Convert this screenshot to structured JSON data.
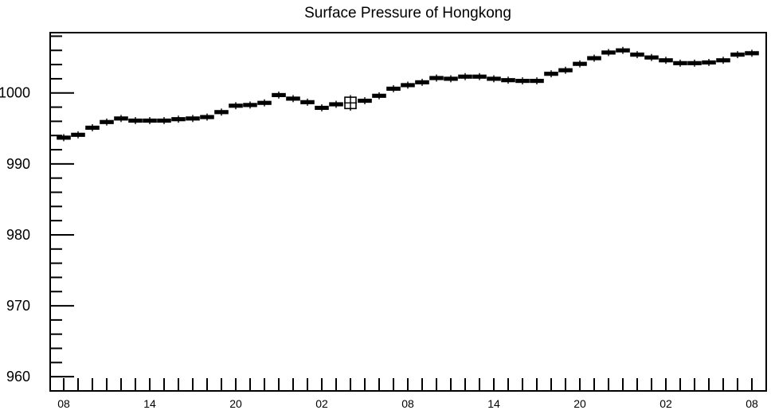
{
  "chart_data": {
    "type": "box",
    "title": "Surface Pressure of Hongkong",
    "xlabel": "",
    "ylabel": "",
    "ylim": [
      958,
      1008.5
    ],
    "y_ticks": [
      960,
      970,
      980,
      990,
      1000
    ],
    "y_tick_labels": [
      "960",
      "970",
      "980",
      "990",
      "1000"
    ],
    "x_tick_labels": [
      "08",
      "14",
      "20",
      "02",
      "08",
      "14",
      "20",
      "02",
      "08"
    ],
    "x_tick_label_hours": [
      0,
      6,
      12,
      18,
      24,
      30,
      36,
      42,
      48
    ],
    "x_range_hours": [
      0,
      48
    ],
    "grid": false,
    "series": [
      {
        "hours": [
          0,
          1,
          2,
          3,
          4,
          5,
          6,
          7,
          8,
          9,
          10,
          11,
          12,
          13,
          14,
          15,
          16,
          17,
          18,
          19,
          20,
          21,
          22,
          23,
          24,
          25,
          26,
          27,
          28,
          29,
          30,
          31,
          32,
          33,
          34,
          35,
          36,
          37,
          38,
          39,
          40,
          41,
          42,
          43,
          44,
          45,
          46,
          47,
          48
        ],
        "values": [
          993.7,
          994.1,
          995.1,
          995.9,
          996.4,
          996.1,
          996.1,
          996.1,
          996.3,
          996.4,
          996.6,
          997.3,
          998.2,
          998.3,
          998.6,
          999.7,
          999.2,
          998.7,
          997.9,
          998.4,
          998.6,
          998.9,
          999.6,
          1000.6,
          1001.1,
          1001.5,
          1002.1,
          1002.0,
          1002.3,
          1002.3,
          1002.0,
          1001.8,
          1001.7,
          1001.7,
          1002.7,
          1003.2,
          1004.1,
          1004.9,
          1005.7,
          1006.0,
          1005.4,
          1005.0,
          1004.6,
          1004.2,
          1004.2,
          1004.3,
          1004.6,
          1005.4,
          1005.6
        ],
        "box_half_height": [
          0.2,
          0.2,
          0.2,
          0.2,
          0.2,
          0.2,
          0.2,
          0.2,
          0.2,
          0.2,
          0.2,
          0.2,
          0.2,
          0.2,
          0.2,
          0.2,
          0.2,
          0.2,
          0.2,
          0.2,
          0.8,
          0.2,
          0.2,
          0.2,
          0.2,
          0.2,
          0.2,
          0.2,
          0.2,
          0.2,
          0.2,
          0.2,
          0.2,
          0.2,
          0.2,
          0.2,
          0.2,
          0.2,
          0.2,
          0.2,
          0.2,
          0.2,
          0.2,
          0.2,
          0.2,
          0.2,
          0.2,
          0.2,
          0.2
        ]
      }
    ]
  }
}
